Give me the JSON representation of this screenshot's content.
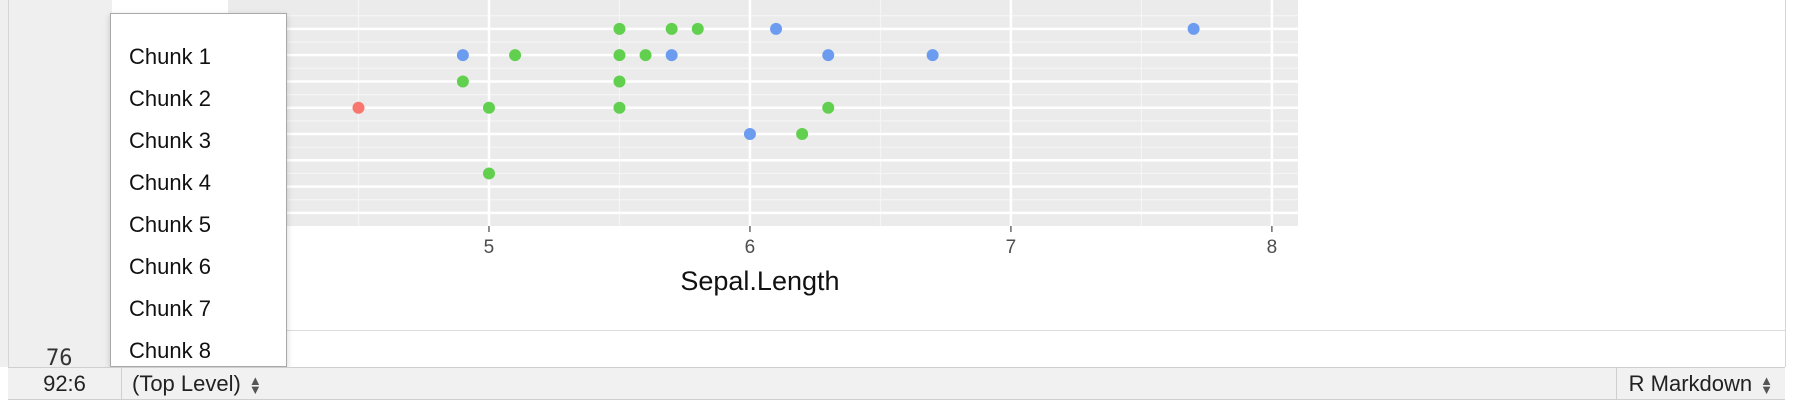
{
  "editor": {
    "line_number": "76"
  },
  "chart_data": {
    "type": "scatter",
    "xlabel": "Sepal.Length",
    "ylabel": "",
    "x_ticks": [
      "5",
      "6",
      "7",
      "8"
    ],
    "xlim": [
      4.0,
      8.1
    ],
    "ylim": [
      0.0,
      8.6
    ],
    "series": [
      {
        "color": "#F8766D",
        "points": [
          [
            4.5,
            4.5
          ]
        ]
      },
      {
        "color": "#61D04F",
        "points": [
          [
            5.5,
            7.5
          ],
          [
            5.7,
            7.5
          ],
          [
            5.8,
            7.5
          ],
          [
            5.1,
            6.5
          ],
          [
            5.5,
            6.5
          ],
          [
            5.6,
            6.5
          ],
          [
            4.9,
            5.5
          ],
          [
            5.5,
            5.5
          ],
          [
            5.0,
            4.5
          ],
          [
            5.5,
            4.5
          ],
          [
            6.3,
            4.5
          ],
          [
            6.2,
            3.5
          ],
          [
            5.0,
            2.0
          ]
        ]
      },
      {
        "color": "#6C9CF0",
        "points": [
          [
            6.1,
            7.5
          ],
          [
            7.7,
            7.5
          ],
          [
            4.9,
            6.5
          ],
          [
            5.7,
            6.5
          ],
          [
            6.3,
            6.5
          ],
          [
            6.7,
            6.5
          ],
          [
            6.0,
            3.5
          ]
        ]
      }
    ]
  },
  "chunk_menu": {
    "items": [
      "Chunk 1",
      "Chunk 2",
      "Chunk 3",
      "Chunk 4",
      "Chunk 5",
      "Chunk 6",
      "Chunk 7",
      "Chunk 8"
    ]
  },
  "status_bar": {
    "cursor_position": "92:6",
    "scope": "(Top Level)",
    "mode": "R Markdown"
  }
}
